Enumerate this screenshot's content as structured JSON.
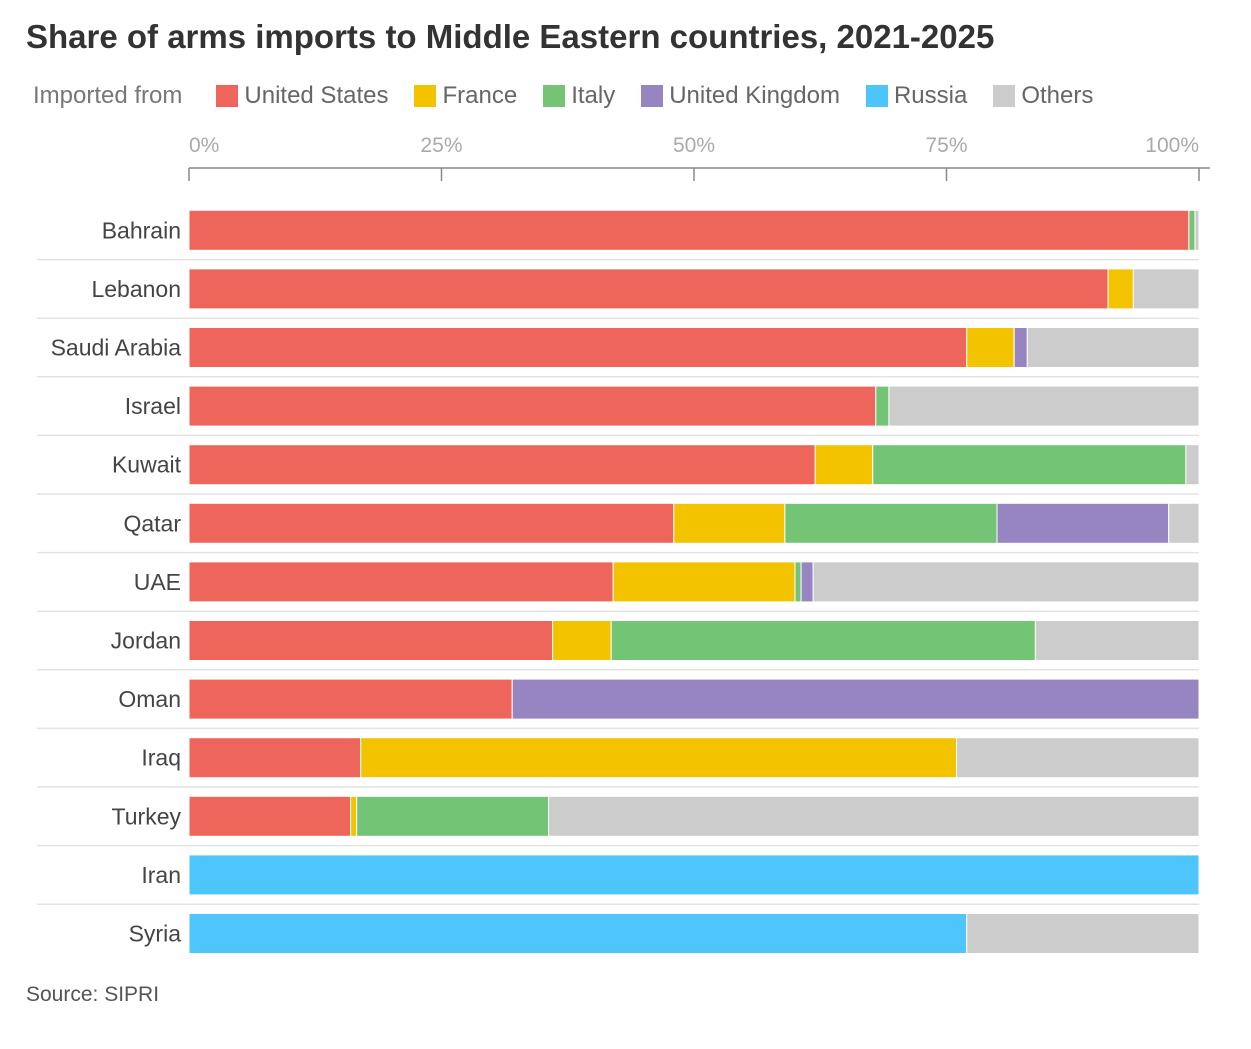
{
  "chart_data": {
    "type": "bar",
    "orientation": "horizontal",
    "stacked": true,
    "title": "Share of arms imports to Middle Eastern countries, 2021-2025",
    "legend_title": "Imported from",
    "source": "Source: SIPRI",
    "xlim": [
      0,
      100
    ],
    "ticks": [
      0,
      25,
      50,
      75,
      100
    ],
    "tick_labels": [
      "0%",
      "25%",
      "50%",
      "75%",
      "100%"
    ],
    "categories": [
      "Bahrain",
      "Lebanon",
      "Saudi Arabia",
      "Israel",
      "Kuwait",
      "Qatar",
      "UAE",
      "Jordan",
      "Oman",
      "Iraq",
      "Turkey",
      "Iran",
      "Syria"
    ],
    "series": [
      {
        "name": "United States",
        "color": "#ee665b",
        "values": [
          99.0,
          91.0,
          77.0,
          68.0,
          62.0,
          48.0,
          42.0,
          36.0,
          32.0,
          17.0,
          16.0,
          0,
          0
        ]
      },
      {
        "name": "France",
        "color": "#f4c300",
        "values": [
          0,
          2.5,
          4.7,
          0,
          5.7,
          11.0,
          18.0,
          5.8,
          0,
          59.0,
          0.6,
          0,
          0
        ]
      },
      {
        "name": "Italy",
        "color": "#74c476",
        "values": [
          0.6,
          0,
          0,
          1.3,
          31.0,
          21.0,
          0.6,
          42.0,
          0,
          0,
          19.0,
          0,
          0
        ]
      },
      {
        "name": "United Kingdom",
        "color": "#9785c2",
        "values": [
          0,
          0,
          1.3,
          0,
          0,
          17.0,
          1.2,
          0,
          68.0,
          0,
          0,
          0,
          0
        ]
      },
      {
        "name": "Russia",
        "color": "#4fc6fb",
        "values": [
          0,
          0,
          0,
          0,
          0,
          0,
          0,
          0,
          0,
          0,
          0,
          100,
          77.0
        ]
      },
      {
        "name": "Others",
        "color": "#cccccc",
        "values": [
          0.4,
          6.5,
          17.0,
          30.7,
          1.3,
          3.0,
          38.2,
          16.2,
          0,
          24.0,
          64.4,
          0,
          23.0
        ]
      }
    ]
  }
}
